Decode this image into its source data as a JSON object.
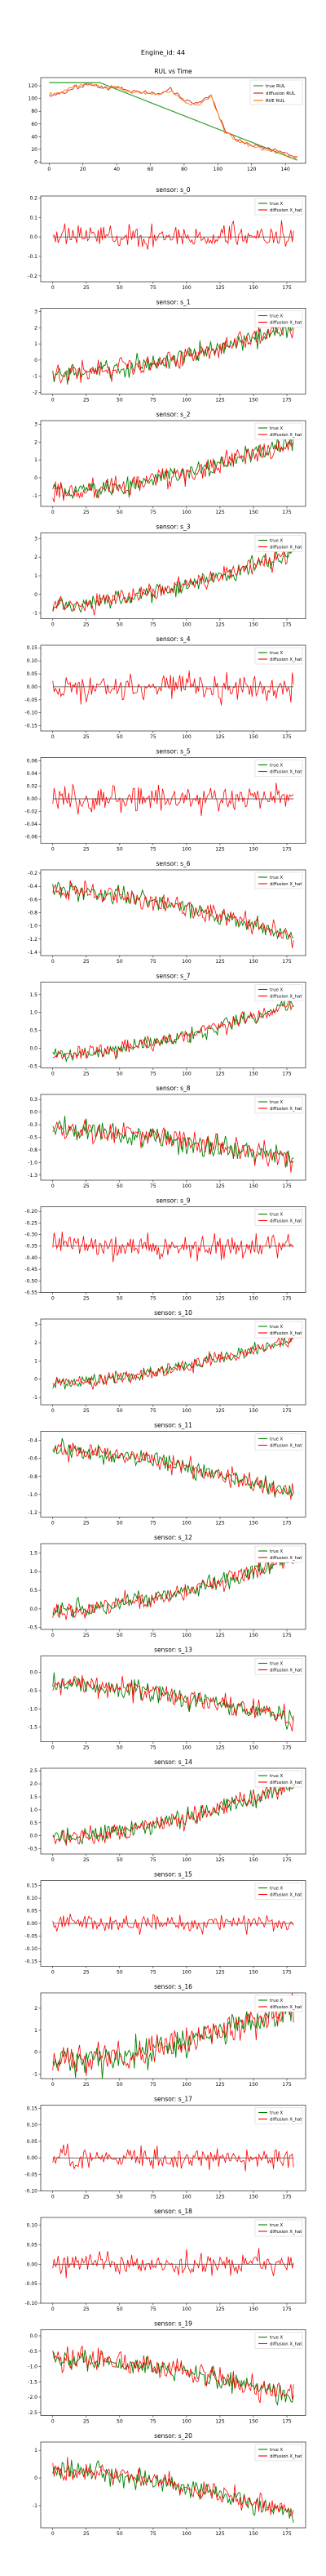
{
  "figure": {
    "suptitle": "Engine_id: 44"
  },
  "chart_data": [
    {
      "type": "line",
      "title": "RUL vs Time",
      "xlim": [
        -5,
        152
      ],
      "ylim": [
        -2,
        133
      ],
      "xticks": [
        0,
        20,
        40,
        60,
        80,
        100,
        120,
        140
      ],
      "yticks": [
        0,
        20,
        40,
        60,
        80,
        100,
        120
      ],
      "legend": "top-right",
      "grid": false,
      "series": [
        {
          "name": "true RUL",
          "color": "#2ca02c",
          "x": [
            0,
            30,
            147
          ],
          "y": [
            125,
            125,
            3
          ]
        },
        {
          "name": "diffusion RUL",
          "color": "#d62728",
          "x": [
            0,
            8,
            16,
            24,
            32,
            40,
            48,
            56,
            64,
            72,
            80,
            88,
            96,
            104,
            112,
            120,
            128,
            136,
            144,
            147
          ],
          "y": [
            104,
            108,
            118,
            122,
            116,
            119,
            112,
            110,
            108,
            114,
            98,
            92,
            106,
            50,
            35,
            27,
            22,
            18,
            9,
            8
          ]
        },
        {
          "name": "RVE RUL",
          "color": "#ff7f0e",
          "x": [
            0,
            8,
            16,
            24,
            32,
            40,
            48,
            56,
            64,
            72,
            80,
            88,
            96,
            104,
            112,
            120,
            128,
            136,
            144,
            147
          ],
          "y": [
            106,
            110,
            120,
            123,
            117,
            118,
            110,
            109,
            106,
            112,
            96,
            90,
            104,
            48,
            33,
            25,
            20,
            15,
            7,
            6
          ]
        }
      ]
    },
    {
      "type": "line",
      "title": "sensor: s_0",
      "start": 0.0,
      "end": 0.0,
      "amp": 0.07,
      "ylim": [
        -0.23,
        0.21
      ],
      "yticks": [
        -0.2,
        -0.1,
        0.0,
        0.1,
        0.2
      ],
      "xticks": [
        0,
        25,
        50,
        75,
        100,
        125,
        150,
        175
      ],
      "xlim": [
        -9,
        189
      ],
      "legend": "top-right",
      "series_names": [
        "true X",
        "diffusion X_hat"
      ]
    },
    {
      "type": "line",
      "title": "sensor: s_1",
      "start": -0.9,
      "end": 2.1,
      "amp": 0.75,
      "ylim": [
        -2.1,
        3.2
      ],
      "yticks": [
        -2,
        -1,
        0,
        1,
        2,
        3
      ],
      "xticks": [
        0,
        25,
        50,
        75,
        100,
        125,
        150,
        175
      ],
      "xlim": [
        -9,
        189
      ],
      "legend": "top-right",
      "series_names": [
        "true X",
        "diffusion X_hat"
      ]
    },
    {
      "type": "line",
      "title": "sensor: s_2",
      "start": -0.8,
      "end": 2.0,
      "amp": 0.7,
      "ylim": [
        -1.6,
        3.2
      ],
      "yticks": [
        -1,
        0,
        1,
        2,
        3
      ],
      "xticks": [
        0,
        25,
        50,
        75,
        100,
        125,
        150,
        175
      ],
      "xlim": [
        -9,
        189
      ],
      "legend": "top-right",
      "series_names": [
        "true X",
        "diffusion X_hat"
      ]
    },
    {
      "type": "line",
      "title": "sensor: s_3",
      "start": -0.6,
      "end": 2.3,
      "amp": 0.6,
      "ylim": [
        -1.3,
        3.3
      ],
      "yticks": [
        -1,
        0,
        1,
        2,
        3
      ],
      "xticks": [
        0,
        25,
        50,
        75,
        100,
        125,
        150,
        175
      ],
      "xlim": [
        -9,
        189
      ],
      "legend": "top-right",
      "series_names": [
        "true X",
        "diffusion X_hat"
      ]
    },
    {
      "type": "line",
      "title": "sensor: s_4",
      "start": 0.0,
      "end": 0.0,
      "amp": 0.065,
      "ylim": [
        -0.17,
        0.16
      ],
      "yticks": [
        -0.15,
        -0.1,
        -0.05,
        0.0,
        0.05,
        0.1,
        0.15
      ],
      "xticks": [
        0,
        25,
        50,
        75,
        100,
        125,
        150,
        175
      ],
      "xlim": [
        -9,
        189
      ],
      "legend": "top-right",
      "series_names": [
        "true X",
        "diffusion X_hat"
      ]
    },
    {
      "type": "line",
      "title": "sensor: s_5",
      "start": 0.0,
      "end": 0.0,
      "amp": 0.025,
      "ylim": [
        -0.07,
        0.065
      ],
      "yticks": [
        -0.06,
        -0.04,
        -0.02,
        0.0,
        0.02,
        0.04,
        0.06
      ],
      "xticks": [
        0,
        25,
        50,
        75,
        100,
        125,
        150,
        175
      ],
      "xlim": [
        -9,
        189
      ],
      "legend": "top-right",
      "series_names": [
        "true X",
        "diffusion X_hat"
      ]
    },
    {
      "type": "line",
      "title": "sensor: s_6",
      "start": -0.45,
      "end": -1.15,
      "amp": 0.18,
      "ylim": [
        -1.45,
        -0.15
      ],
      "yticks": [
        -1.4,
        -1.2,
        -1.0,
        -0.8,
        -0.6,
        -0.4,
        -0.2
      ],
      "xticks": [
        0,
        25,
        50,
        75,
        100,
        125,
        150,
        175
      ],
      "xlim": [
        -9,
        189
      ],
      "legend": "top-right",
      "series_names": [
        "true X",
        "diffusion X_hat"
      ]
    },
    {
      "type": "line",
      "title": "sensor: s_7",
      "start": -0.2,
      "end": 1.25,
      "amp": 0.25,
      "ylim": [
        -0.55,
        1.85
      ],
      "yticks": [
        -0.5,
        0.0,
        0.5,
        1.0,
        1.5
      ],
      "xticks": [
        0,
        25,
        50,
        75,
        100,
        125,
        150,
        175
      ],
      "xlim": [
        -9,
        189
      ],
      "legend": "top-right",
      "series_names": [
        "true X",
        "diffusion X_hat"
      ]
    },
    {
      "type": "line",
      "title": "sensor: s_8",
      "start": -0.35,
      "end": -0.95,
      "amp": 0.28,
      "ylim": [
        -1.35,
        0.35
      ],
      "yticks": [
        -1.25,
        -1.0,
        -0.75,
        -0.5,
        -0.25,
        0.0,
        0.25
      ],
      "xticks": [
        0,
        25,
        50,
        75,
        100,
        125,
        150,
        175
      ],
      "xlim": [
        -9,
        189
      ],
      "legend": "top-right",
      "series_names": [
        "true X",
        "diffusion X_hat"
      ]
    },
    {
      "type": "line",
      "title": "sensor: s_9",
      "start": -0.35,
      "end": -0.35,
      "amp": 0.06,
      "ylim": [
        -0.55,
        -0.18
      ],
      "yticks": [
        -0.55,
        -0.5,
        -0.45,
        -0.4,
        -0.35,
        -0.3,
        -0.25,
        -0.2
      ],
      "xticks": [
        0,
        25,
        50,
        75,
        100,
        125,
        150,
        175
      ],
      "xlim": [
        -9,
        189
      ],
      "legend": "top-right",
      "series_names": [
        "true X",
        "diffusion X_hat"
      ]
    },
    {
      "type": "line",
      "title": "sensor: s_10",
      "start": -0.2,
      "end": 2.2,
      "amp": 0.5,
      "ylim": [
        -1.4,
        3.3
      ],
      "yticks": [
        -1,
        0,
        1,
        2,
        3
      ],
      "xticks": [
        0,
        25,
        50,
        75,
        100,
        125,
        150,
        175
      ],
      "xlim": [
        -9,
        189
      ],
      "legend": "top-right",
      "series_names": [
        "true X",
        "diffusion X_hat"
      ]
    },
    {
      "type": "line",
      "title": "sensor: s_11",
      "start": -0.5,
      "end": -1.0,
      "amp": 0.12,
      "ylim": [
        -1.25,
        -0.3
      ],
      "yticks": [
        -1.2,
        -1.0,
        -0.8,
        -0.6,
        -0.4
      ],
      "xticks": [
        0,
        25,
        50,
        75,
        100,
        125,
        150,
        175
      ],
      "xlim": [
        -9,
        189
      ],
      "legend": "top-right",
      "series_names": [
        "true X",
        "diffusion X_hat"
      ]
    },
    {
      "type": "line",
      "title": "sensor: s_12",
      "start": -0.05,
      "end": 1.35,
      "amp": 0.3,
      "ylim": [
        -0.55,
        1.75
      ],
      "yticks": [
        -0.5,
        0.0,
        0.5,
        1.0,
        1.5
      ],
      "xticks": [
        0,
        25,
        50,
        75,
        100,
        125,
        150,
        175
      ],
      "xlim": [
        -9,
        189
      ],
      "legend": "top-right",
      "series_names": [
        "true X",
        "diffusion X_hat"
      ]
    },
    {
      "type": "line",
      "title": "sensor: s_13",
      "start": -0.3,
      "end": -1.3,
      "amp": 0.35,
      "ylim": [
        -1.9,
        0.45
      ],
      "yticks": [
        -1.5,
        -1.0,
        -0.5,
        0.0
      ],
      "xticks": [
        0,
        25,
        50,
        75,
        100,
        125,
        150,
        175
      ],
      "xlim": [
        -9,
        189
      ],
      "legend": "top-right",
      "series_names": [
        "true X",
        "diffusion X_hat"
      ]
    },
    {
      "type": "line",
      "title": "sensor: s_14",
      "start": -0.1,
      "end": 2.0,
      "amp": 0.45,
      "ylim": [
        -0.7,
        2.6
      ],
      "yticks": [
        -0.5,
        0.0,
        0.5,
        1.0,
        1.5,
        2.0,
        2.5
      ],
      "xticks": [
        0,
        25,
        50,
        75,
        100,
        125,
        150,
        175
      ],
      "xlim": [
        -9,
        189
      ],
      "legend": "top-right",
      "series_names": [
        "true X",
        "diffusion X_hat"
      ]
    },
    {
      "type": "line",
      "title": "sensor: s_15",
      "start": 0.0,
      "end": 0.0,
      "amp": 0.04,
      "ylim": [
        -0.17,
        0.17
      ],
      "yticks": [
        -0.15,
        -0.1,
        -0.05,
        0.0,
        0.05,
        0.1,
        0.15
      ],
      "xticks": [
        0,
        25,
        50,
        75,
        100,
        125,
        150,
        175
      ],
      "xlim": [
        -9,
        189
      ],
      "legend": "top-right",
      "series_names": [
        "true X",
        "diffusion X_hat"
      ]
    },
    {
      "type": "line",
      "title": "sensor: s_16",
      "start": -0.5,
      "end": 2.0,
      "amp": 0.8,
      "ylim": [
        -1.2,
        2.7
      ],
      "yticks": [
        -1,
        0,
        1,
        2
      ],
      "xticks": [
        0,
        25,
        50,
        75,
        100,
        125,
        150,
        175
      ],
      "xlim": [
        -9,
        189
      ],
      "legend": "top-right",
      "series_names": [
        "true X",
        "diffusion X_hat"
      ]
    },
    {
      "type": "line",
      "title": "sensor: s_17",
      "start": 0.0,
      "end": 0.0,
      "amp": 0.04,
      "ylim": [
        -0.1,
        0.16
      ],
      "yticks": [
        -0.1,
        -0.05,
        0.0,
        0.05,
        0.1,
        0.15
      ],
      "xticks": [
        0,
        25,
        50,
        75,
        100,
        125,
        150,
        175
      ],
      "xlim": [
        -9,
        189
      ],
      "legend": "top-right",
      "series_names": [
        "true X",
        "diffusion X_hat"
      ]
    },
    {
      "type": "line",
      "title": "sensor: s_18",
      "start": 0.0,
      "end": 0.0,
      "amp": 0.035,
      "ylim": [
        -0.1,
        0.12
      ],
      "yticks": [
        -0.1,
        -0.05,
        0.0,
        0.05,
        0.1
      ],
      "xticks": [
        0,
        25,
        50,
        75,
        100,
        125,
        150,
        175
      ],
      "xlim": [
        -9,
        189
      ],
      "legend": "top-right",
      "series_names": [
        "true X",
        "diffusion X_hat"
      ]
    },
    {
      "type": "line",
      "title": "sensor: s_19",
      "start": -0.7,
      "end": -2.0,
      "amp": 0.45,
      "ylim": [
        -2.6,
        0.2
      ],
      "yticks": [
        -2.5,
        -2.0,
        -1.5,
        -1.0,
        -0.5,
        0.0
      ],
      "xticks": [
        0,
        25,
        50,
        75,
        100,
        125,
        150,
        175
      ],
      "xlim": [
        -9,
        189
      ],
      "legend": "top-right",
      "series_names": [
        "true X",
        "diffusion X_hat"
      ]
    },
    {
      "type": "line",
      "title": "sensor: s_20",
      "start": 0.3,
      "end": -1.3,
      "amp": 0.45,
      "ylim": [
        -1.8,
        1.3
      ],
      "yticks": [
        -1,
        0,
        1
      ],
      "xticks": [
        0,
        25,
        50,
        75,
        100,
        125,
        150,
        175
      ],
      "xlim": [
        -9,
        189
      ],
      "legend": "top-right",
      "series_names": [
        "true X",
        "diffusion X_hat"
      ]
    }
  ],
  "colors": {
    "true": "#008000",
    "diffusion": "#ff0000",
    "flat": "#444444"
  }
}
